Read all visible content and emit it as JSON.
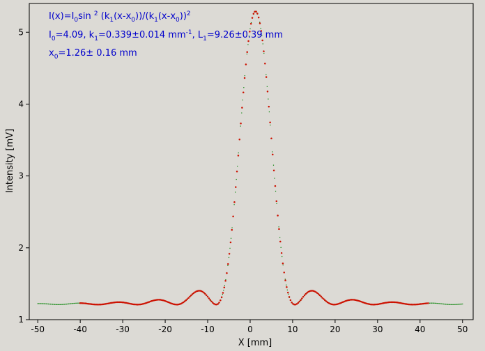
{
  "chart_data": {
    "type": "scatter",
    "xlabel": "X [mm]",
    "ylabel": "Intensity [mV]",
    "xlim": [
      -52,
      52.5
    ],
    "ylim": [
      1,
      5.4
    ],
    "x_ticks": [
      "-50",
      "-40",
      "-30",
      "-20",
      "-10",
      "0",
      "10",
      "20",
      "30",
      "40",
      "50"
    ],
    "y_ticks": [
      "1",
      "2",
      "3",
      "4",
      "5"
    ],
    "grid": false,
    "colors": {
      "background": "#dcdad5",
      "measured": "#008000",
      "fit": "#cc1100",
      "annotation": "#0000cc"
    },
    "fit_model": {
      "baseline": 1.21,
      "I0": 4.09,
      "k1": 0.339,
      "x0": 1.26,
      "peak": 5.29
    },
    "series": [
      {
        "marker": "small green dots",
        "x_range": [
          -50,
          50
        ]
      },
      {
        "marker": "red dots",
        "x_range": [
          -40,
          42
        ]
      }
    ],
    "annotations": {
      "line1": {
        "a": "I(x)=I",
        "b": "0",
        "c": "sin ",
        "d": "2",
        "e": " (k",
        "f": "1",
        "g": "(x-x",
        "h": "0",
        "i": "))/(k",
        "j": "1",
        "k": "(x-x",
        "l": "0",
        "m": "))",
        "n": "2"
      },
      "line2": {
        "a": "I",
        "b": "0",
        "c": "=4.09,  k",
        "d": "1",
        "e": "=0.339±0.014 mm",
        "f": "-1",
        "g": ",   L",
        "h": "1",
        "i": "=9.26±0.39 mm"
      },
      "line3": {
        "a": "x",
        "b": "0",
        "c": "=1.26±   0.16 mm"
      }
    }
  }
}
